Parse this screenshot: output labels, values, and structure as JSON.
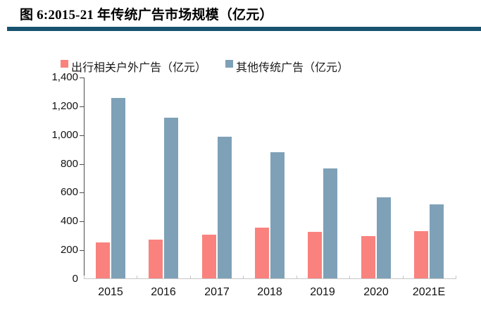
{
  "figure": {
    "title": "图 6:2015-21 年传统广告市场规模（亿元）"
  },
  "chart_data": {
    "type": "bar",
    "title": "图 6:2015-21 年传统广告市场规模（亿元）",
    "categories": [
      "2015",
      "2016",
      "2017",
      "2018",
      "2019",
      "2020",
      "2021E"
    ],
    "series": [
      {
        "name": "出行相关户外广告（亿元）",
        "color": "#f9827e",
        "values": [
          255,
          275,
          310,
          355,
          330,
          300,
          335
        ]
      },
      {
        "name": "其他传统广告（亿元）",
        "color": "#7ea1b7",
        "values": [
          1260,
          1120,
          990,
          880,
          770,
          570,
          520
        ]
      }
    ],
    "xlabel": "",
    "ylabel": "",
    "ylim": [
      0,
      1400
    ],
    "ytick_values": [
      0,
      200,
      400,
      600,
      800,
      1000,
      1200,
      1400
    ],
    "ytick_labels": [
      "0",
      "200",
      "400",
      "600",
      "800",
      "1,000",
      "1,200",
      "1,400"
    ],
    "grid": false,
    "legend_position": "top"
  },
  "colors": {
    "title_rule": "#17536f",
    "axis_line": "#4d4d4d",
    "baseline": "#c8c8c8"
  }
}
